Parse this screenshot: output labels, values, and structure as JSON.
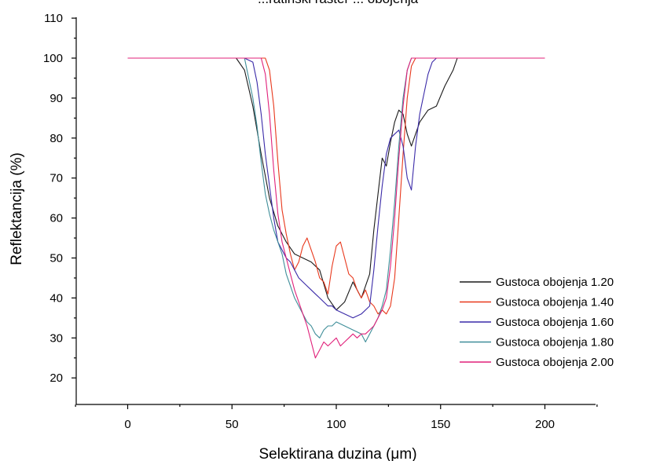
{
  "chart_data": {
    "type": "line",
    "title": "...ratinski raster ... obojenja",
    "xlabel": "Selektirana duzina (μm)",
    "ylabel": "Reflektancija (%)",
    "xlim": [
      -25,
      225
    ],
    "ylim": [
      15,
      110
    ],
    "xticks": [
      0,
      50,
      100,
      150,
      200
    ],
    "yticks": [
      20,
      30,
      40,
      50,
      60,
      70,
      80,
      90,
      100,
      110
    ],
    "legend_position": "right",
    "series": [
      {
        "name": "Gustoca obojenja 1.20",
        "color": "#1a1a1a",
        "x": [
          0,
          52,
          56,
          60,
          64,
          68,
          72,
          76,
          80,
          84,
          88,
          92,
          96,
          100,
          104,
          108,
          112,
          116,
          118,
          120,
          122,
          124,
          126,
          128,
          130,
          132,
          134,
          136,
          138,
          140,
          144,
          148,
          152,
          156,
          158,
          162,
          200
        ],
        "y": [
          100,
          100,
          97,
          88,
          76,
          65,
          58,
          54,
          51,
          50,
          49,
          47,
          40,
          37,
          39,
          44,
          40,
          46,
          57,
          66,
          75,
          73,
          79,
          84,
          87,
          86,
          81,
          78,
          81,
          84,
          87,
          88,
          93,
          97,
          100,
          100,
          100
        ]
      },
      {
        "name": "Gustoca obojenja 1.40",
        "color": "#e8381c",
        "x": [
          0,
          66,
          68,
          70,
          72,
          74,
          76,
          78,
          80,
          82,
          84,
          86,
          88,
          90,
          92,
          94,
          96,
          98,
          100,
          102,
          104,
          106,
          108,
          110,
          112,
          114,
          116,
          118,
          120,
          122,
          124,
          126,
          128,
          130,
          132,
          134,
          136,
          138,
          140,
          200
        ],
        "y": [
          100,
          100,
          97,
          88,
          74,
          62,
          56,
          51,
          47,
          49,
          53,
          55,
          52,
          49,
          45,
          44,
          41,
          48,
          53,
          54,
          50,
          46,
          45,
          42,
          40,
          42,
          39,
          38,
          36,
          37,
          36,
          38,
          45,
          60,
          76,
          90,
          98,
          100,
          100,
          100
        ]
      },
      {
        "name": "Gustoca obojenja 1.60",
        "color": "#3a2aa8",
        "x": [
          0,
          56,
          60,
          62,
          64,
          66,
          68,
          70,
          72,
          74,
          76,
          78,
          80,
          82,
          84,
          86,
          88,
          90,
          92,
          94,
          96,
          98,
          100,
          104,
          108,
          112,
          116,
          118,
          120,
          122,
          124,
          126,
          128,
          130,
          132,
          134,
          136,
          138,
          140,
          142,
          144,
          146,
          148,
          200
        ],
        "y": [
          100,
          100,
          99,
          94,
          86,
          76,
          68,
          60,
          54,
          52,
          50,
          49,
          47,
          45,
          44,
          43,
          42,
          41,
          40,
          39,
          38,
          38,
          37,
          36,
          35,
          36,
          38,
          47,
          58,
          68,
          76,
          80,
          81,
          82,
          78,
          70,
          67,
          78,
          86,
          91,
          96,
          99,
          100,
          100
        ]
      },
      {
        "name": "Gustoca obojenja 1.80",
        "color": "#3f8e99",
        "x": [
          0,
          56,
          58,
          60,
          62,
          64,
          66,
          68,
          70,
          72,
          74,
          76,
          78,
          80,
          82,
          84,
          86,
          88,
          90,
          92,
          94,
          96,
          98,
          100,
          104,
          108,
          112,
          114,
          116,
          118,
          120,
          122,
          124,
          126,
          128,
          130,
          132,
          134,
          136,
          138,
          200
        ],
        "y": [
          100,
          100,
          95,
          90,
          83,
          74,
          66,
          61,
          57,
          54,
          51,
          46,
          43,
          40,
          38,
          36,
          34,
          33,
          31,
          30,
          32,
          33,
          33,
          34,
          33,
          32,
          31,
          29,
          31,
          33,
          35,
          38,
          42,
          52,
          64,
          78,
          90,
          97,
          100,
          100,
          100
        ]
      },
      {
        "name": "Gustoca obojenja 2.00",
        "color": "#e0207a",
        "x": [
          0,
          64,
          66,
          68,
          70,
          72,
          74,
          76,
          78,
          80,
          82,
          84,
          86,
          88,
          90,
          92,
          94,
          96,
          98,
          100,
          102,
          104,
          106,
          108,
          110,
          112,
          114,
          116,
          118,
          120,
          122,
          124,
          126,
          128,
          130,
          132,
          134,
          136,
          200
        ],
        "y": [
          100,
          100,
          96,
          86,
          72,
          61,
          54,
          50,
          46,
          42,
          39,
          36,
          33,
          29,
          25,
          27,
          29,
          28,
          29,
          30,
          28,
          29,
          30,
          31,
          30,
          31,
          31,
          32,
          33,
          35,
          37,
          40,
          48,
          60,
          75,
          88,
          97,
          100,
          100
        ]
      }
    ]
  }
}
